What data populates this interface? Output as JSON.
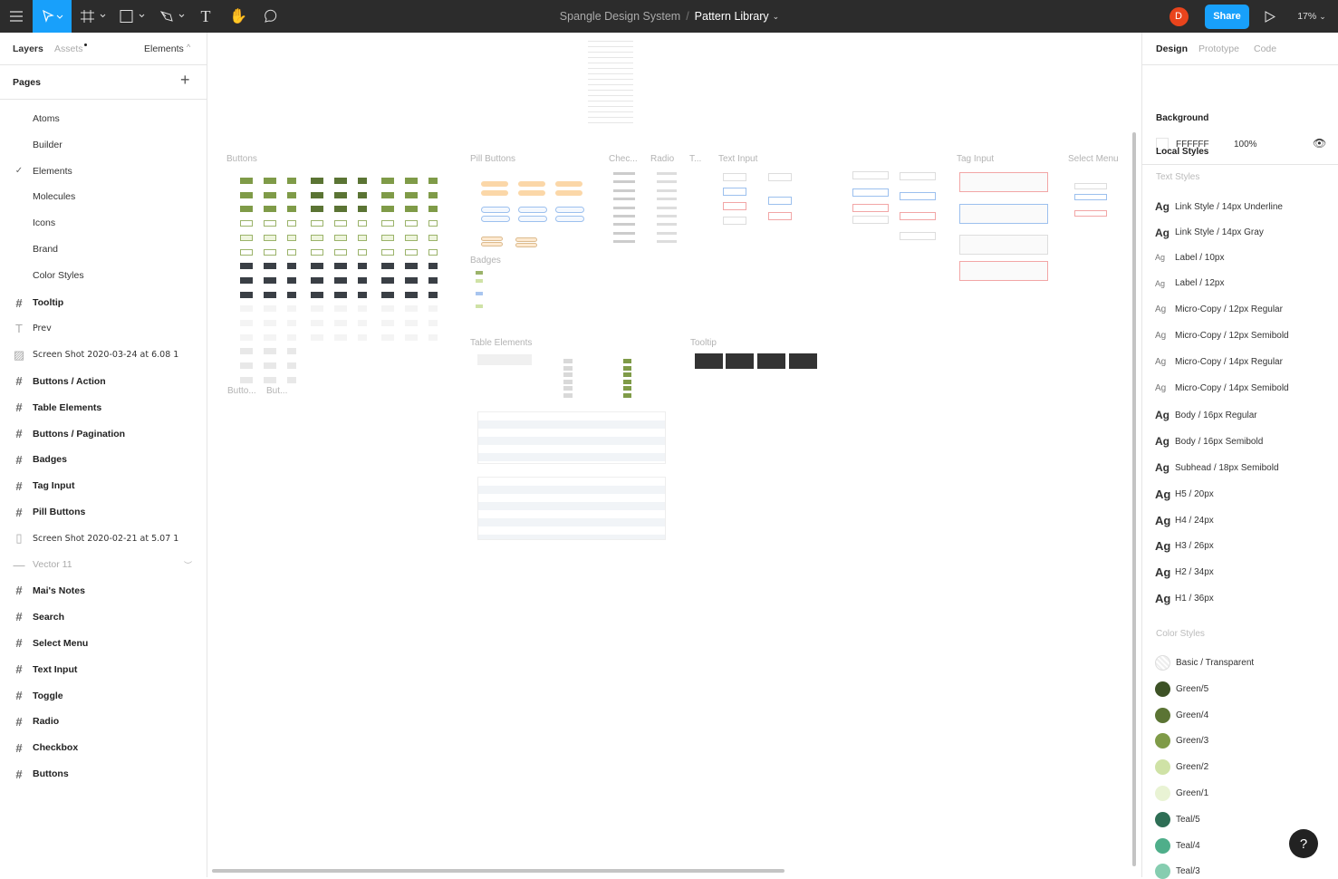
{
  "toolbar": {
    "file_project": "Spangle Design System",
    "separator": "/",
    "file_name": "Pattern Library",
    "avatar_initial": "D",
    "share_label": "Share",
    "zoom": "17%",
    "accent": "#18a0fb"
  },
  "left_panel": {
    "tabs": [
      "Layers",
      "Assets",
      "Elements"
    ],
    "pages_title": "Pages",
    "pages": [
      {
        "label": "Atoms"
      },
      {
        "label": "Builder"
      },
      {
        "label": "Elements",
        "selected": true
      },
      {
        "label": "Molecules"
      },
      {
        "label": "Icons"
      },
      {
        "label": "Brand"
      },
      {
        "label": "Color Styles"
      }
    ],
    "layers": [
      {
        "label": "Tooltip",
        "icon": "frame-icon",
        "bold": true
      },
      {
        "label": "Prev",
        "icon": "text-icon"
      },
      {
        "label": "Screen Shot 2020-03-24 at 6.08 1",
        "icon": "image-icon"
      },
      {
        "label": "Buttons / Action",
        "icon": "frame-icon",
        "bold": true
      },
      {
        "label": "Table Elements",
        "icon": "frame-icon",
        "bold": true
      },
      {
        "label": "Buttons / Pagination",
        "icon": "frame-icon",
        "bold": true
      },
      {
        "label": "Badges",
        "icon": "frame-icon",
        "bold": true
      },
      {
        "label": "Tag Input",
        "icon": "frame-icon",
        "bold": true
      },
      {
        "label": "Pill Buttons",
        "icon": "frame-icon",
        "bold": true
      },
      {
        "label": "Screen Shot 2020-02-21 at 5.07 1",
        "icon": "rectangle-icon"
      },
      {
        "label": "Vector 11",
        "icon": "line-icon",
        "hidden": true
      },
      {
        "label": "Mai's Notes",
        "icon": "frame-icon",
        "bold": true
      },
      {
        "label": "Search",
        "icon": "frame-icon",
        "bold": true
      },
      {
        "label": "Select Menu",
        "icon": "frame-icon",
        "bold": true
      },
      {
        "label": "Text Input",
        "icon": "frame-icon",
        "bold": true
      },
      {
        "label": "Toggle",
        "icon": "frame-icon",
        "bold": true
      },
      {
        "label": "Radio",
        "icon": "frame-icon",
        "bold": true
      },
      {
        "label": "Checkbox",
        "icon": "frame-icon",
        "bold": true
      },
      {
        "label": "Buttons",
        "icon": "frame-icon",
        "bold": true
      }
    ]
  },
  "canvas": {
    "frames": [
      "Buttons",
      "Pill Buttons",
      "Chec...",
      "Radio",
      "T...",
      "Text Input",
      "Tag Input",
      "Select Menu",
      "Badges",
      "Table Elements",
      "Tooltip",
      "Butto...",
      "But..."
    ]
  },
  "right_panel": {
    "tabs": [
      "Design",
      "Prototype",
      "Code"
    ],
    "background_title": "Background",
    "bg_hex": "FFFFFF",
    "bg_opacity": "100%",
    "local_styles": "Local Styles",
    "text_styles_title": "Text Styles",
    "ag": "Ag",
    "text_styles": [
      "Link Style / 14px Underline",
      "Link Style / 14px Gray",
      "Label / 10px",
      "Label / 12px",
      "Micro-Copy / 12px Regular",
      "Micro-Copy / 12px Semibold",
      "Micro-Copy / 14px Regular",
      "Micro-Copy / 14px Semibold",
      "Body / 16px Regular",
      "Body / 16px Semibold",
      "Subhead / 18px Semibold",
      "H5 / 20px",
      "H4 / 24px",
      "H3 / 26px",
      "H2 / 34px",
      "H1 / 36px"
    ],
    "color_styles_title": "Color Styles",
    "color_styles": [
      {
        "label": "Basic / Transparent",
        "color": "transparent"
      },
      {
        "label": "Green/5",
        "color": "#3d5226"
      },
      {
        "label": "Green/4",
        "color": "#5b7434"
      },
      {
        "label": "Green/3",
        "color": "#7f9b48"
      },
      {
        "label": "Green/2",
        "color": "#cfe2a6"
      },
      {
        "label": "Green/1",
        "color": "#e9f3d4"
      },
      {
        "label": "Teal/5",
        "color": "#2e6e55"
      },
      {
        "label": "Teal/4",
        "color": "#4fae8a"
      },
      {
        "label": "Teal/3",
        "color": "#86cdb0"
      }
    ]
  },
  "help_label": "?"
}
